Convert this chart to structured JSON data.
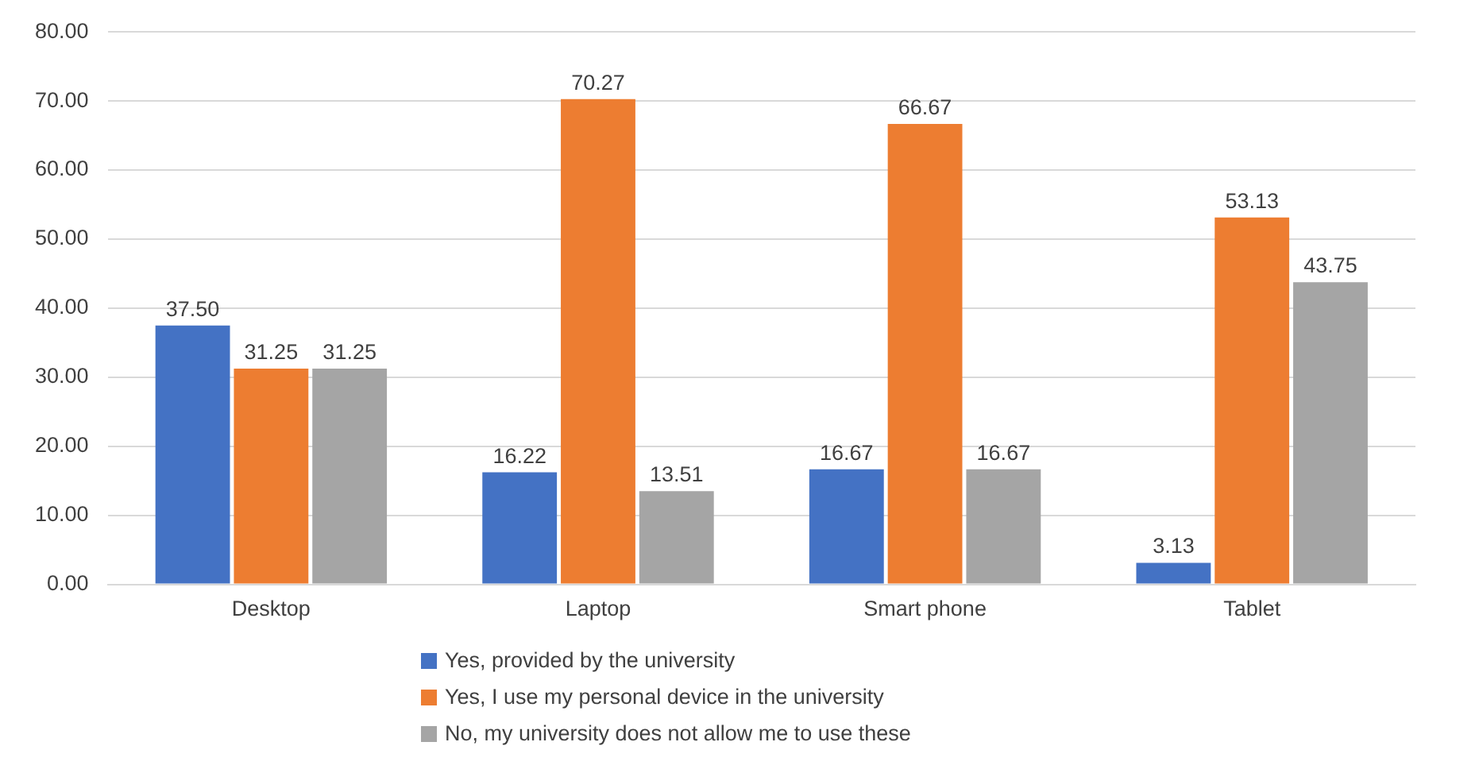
{
  "chart_data": {
    "type": "bar",
    "categories": [
      "Desktop",
      "Laptop",
      "Smart phone",
      "Tablet"
    ],
    "series": [
      {
        "name": "Yes, provided by the university",
        "color": "#4472c4",
        "values": [
          37.5,
          16.22,
          16.67,
          3.13
        ],
        "value_labels": [
          "37.50",
          "16.22",
          "16.67",
          "3.13"
        ]
      },
      {
        "name": "Yes, I use my personal device in the university",
        "color": "#ed7d31",
        "values": [
          31.25,
          70.27,
          66.67,
          53.13
        ],
        "value_labels": [
          "31.25",
          "70.27",
          "66.67",
          "53.13"
        ]
      },
      {
        "name": "No, my university does not allow me to use these",
        "color": "#a5a5a5",
        "values": [
          31.25,
          13.51,
          16.67,
          43.75
        ],
        "value_labels": [
          "31.25",
          "13.51",
          "16.67",
          "43.75"
        ]
      }
    ],
    "ylim": [
      0,
      80
    ],
    "yticks": [
      {
        "value": 0,
        "label": "0.00"
      },
      {
        "value": 10,
        "label": "10.00"
      },
      {
        "value": 20,
        "label": "20.00"
      },
      {
        "value": 30,
        "label": "30.00"
      },
      {
        "value": 40,
        "label": "40.00"
      },
      {
        "value": 50,
        "label": "50.00"
      },
      {
        "value": 60,
        "label": "60.00"
      },
      {
        "value": 70,
        "label": "70.00"
      },
      {
        "value": 80,
        "label": "80.00"
      }
    ],
    "grid": "y",
    "legend": "bottom"
  }
}
